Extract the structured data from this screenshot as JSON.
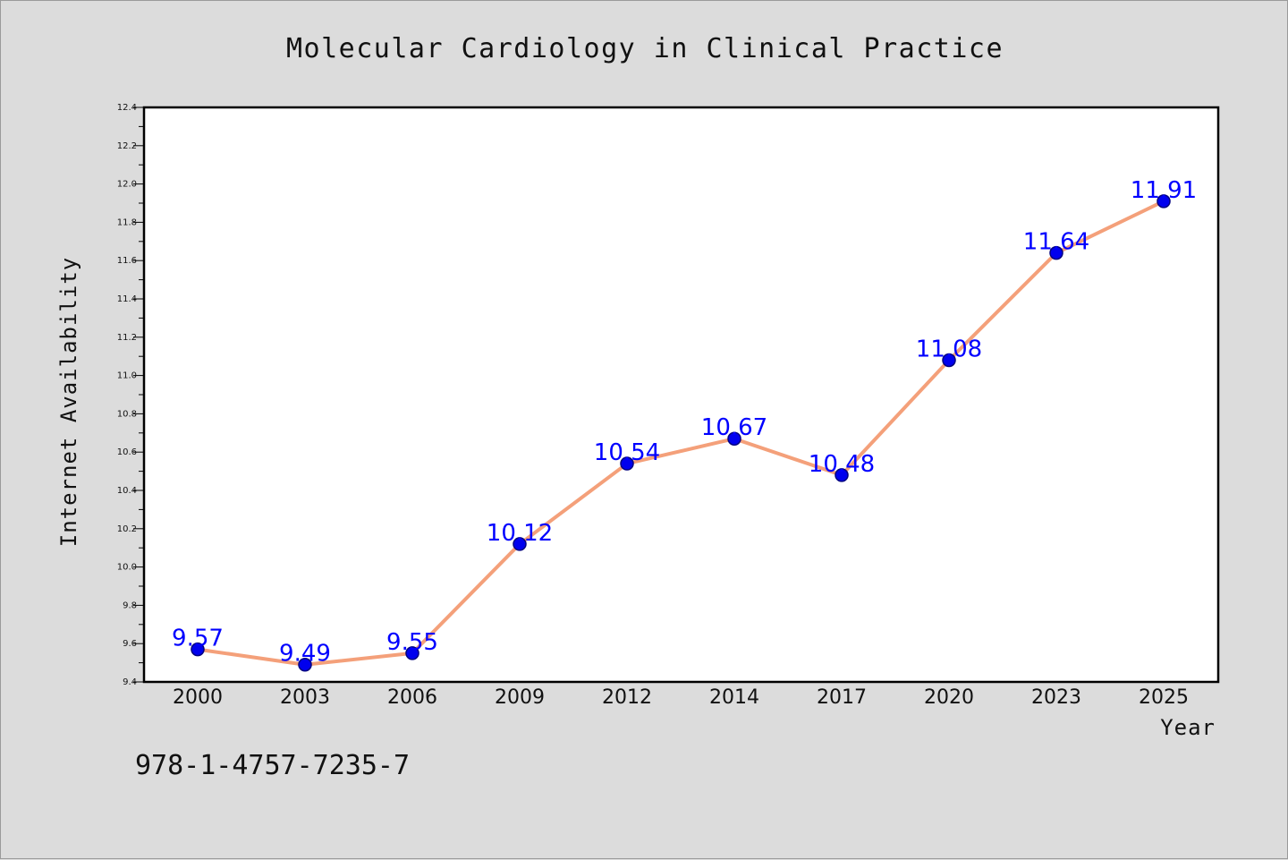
{
  "chart_data": {
    "type": "line",
    "title": "Molecular Cardiology in Clinical Practice",
    "xlabel": "Year",
    "ylabel": "Internet Availability",
    "categories": [
      "2000",
      "2003",
      "2006",
      "2009",
      "2012",
      "2014",
      "2017",
      "2020",
      "2023",
      "2025"
    ],
    "series": [
      {
        "values": [
          9.57,
          9.49,
          9.55,
          10.12,
          10.54,
          10.67,
          10.48,
          11.08,
          11.64,
          11.91
        ],
        "data_labels": [
          "9.57",
          "9.49",
          "9.55",
          "10.12",
          "10.54",
          "10.67",
          "10.48",
          "11.08",
          "11.64",
          "11.91"
        ],
        "line_color": "#f4a07a",
        "marker_color": "#0000ee",
        "marker_edge_color": "#000080",
        "label_color": "#0000ff"
      }
    ],
    "ylim": [
      9.4,
      12.4
    ],
    "yticks": [
      "9.4",
      "9.6",
      "9.8",
      "10.0",
      "10.2",
      "10.4",
      "10.6",
      "10.8",
      "11.0",
      "11.2",
      "11.4",
      "11.6",
      "11.8",
      "12.0",
      "12.2",
      "12.4"
    ],
    "grid": false,
    "legend": "none"
  },
  "footer": {
    "isbn": "978-1-4757-7235-7"
  },
  "colors": {
    "background": "#dcdcdc",
    "plot_area": "#ffffff"
  }
}
